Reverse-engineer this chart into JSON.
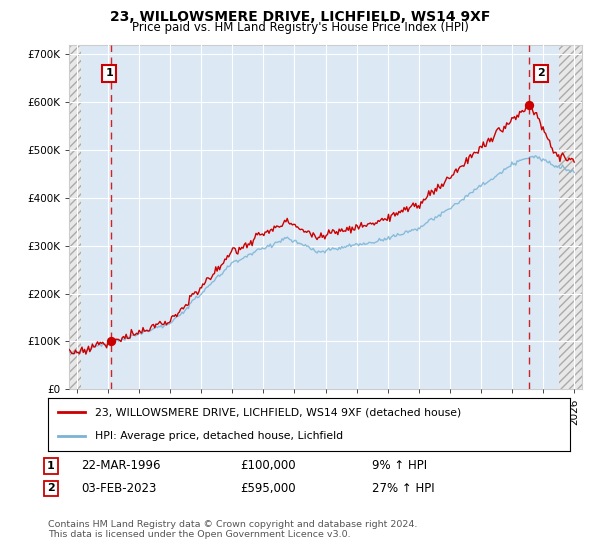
{
  "title": "23, WILLOWSMERE DRIVE, LICHFIELD, WS14 9XF",
  "subtitle": "Price paid vs. HM Land Registry's House Price Index (HPI)",
  "legend_line1": "23, WILLOWSMERE DRIVE, LICHFIELD, WS14 9XF (detached house)",
  "legend_line2": "HPI: Average price, detached house, Lichfield",
  "point1_date": "22-MAR-1996",
  "point1_price": "£100,000",
  "point1_hpi": "9% ↑ HPI",
  "point2_date": "03-FEB-2023",
  "point2_price": "£595,000",
  "point2_hpi": "27% ↑ HPI",
  "footnote": "Contains HM Land Registry data © Crown copyright and database right 2024.\nThis data is licensed under the Open Government Licence v3.0.",
  "sale1_year": 1996.23,
  "sale1_value": 100000,
  "sale2_year": 2023.09,
  "sale2_value": 595000,
  "hpi_color": "#7ab3d4",
  "price_color": "#cc0000",
  "bg_color": "#dce9f5",
  "grid_color": "#ffffff",
  "ylim": [
    0,
    720000
  ],
  "xlim_left": 1993.5,
  "xlim_right": 2026.5,
  "hatch_left_end": 1994.25,
  "hatch_right_start": 2025.0,
  "yticks": [
    0,
    100000,
    200000,
    300000,
    400000,
    500000,
    600000,
    700000
  ],
  "xticks": [
    1994,
    1996,
    1998,
    2000,
    2002,
    2004,
    2006,
    2008,
    2010,
    2012,
    2014,
    2016,
    2018,
    2020,
    2022,
    2024,
    2026
  ]
}
